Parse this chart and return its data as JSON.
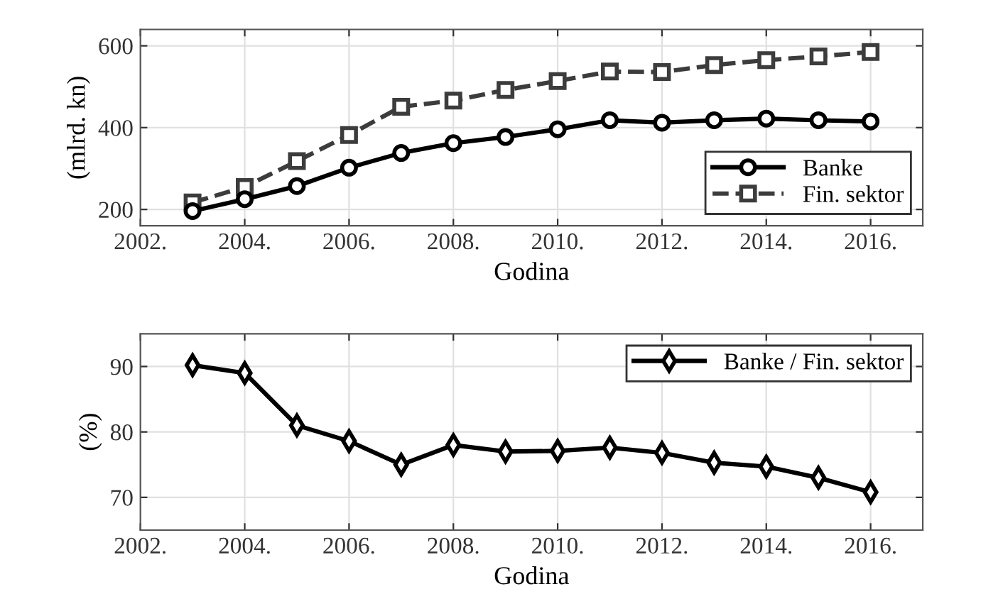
{
  "chart_data": [
    {
      "type": "line",
      "x": [
        2003,
        2004,
        2005,
        2006,
        2007,
        2008,
        2009,
        2010,
        2011,
        2012,
        2013,
        2014,
        2015,
        2016
      ],
      "series": [
        {
          "name": "Banke",
          "color": "#000000",
          "marker": "circle",
          "line_style": "solid",
          "values": [
            196,
            225,
            257,
            302,
            338,
            362,
            377,
            396,
            418,
            412,
            418,
            422,
            418,
            415
          ]
        },
        {
          "name": "Fin. sektor",
          "color": "#3c3c3c",
          "marker": "square",
          "line_style": "dashed",
          "values": [
            217,
            255,
            318,
            382,
            451,
            466,
            492,
            514,
            537,
            536,
            553,
            565,
            574,
            585
          ]
        }
      ],
      "xlabel": "Godina",
      "ylabel": "(mlrd. kn)",
      "xlim": [
        2002,
        2017
      ],
      "xticks": [
        {
          "value": 2002,
          "label": "2002."
        },
        {
          "value": 2004,
          "label": "2004."
        },
        {
          "value": 2006,
          "label": "2006."
        },
        {
          "value": 2008,
          "label": "2008."
        },
        {
          "value": 2010,
          "label": "2010."
        },
        {
          "value": 2012,
          "label": "2012."
        },
        {
          "value": 2014,
          "label": "2014."
        },
        {
          "value": 2016,
          "label": "2016."
        }
      ],
      "ylim": [
        160,
        640
      ],
      "yticks": [
        200,
        400,
        600
      ],
      "grid": true,
      "legend": "bottom right"
    },
    {
      "type": "line",
      "x": [
        2003,
        2004,
        2005,
        2006,
        2007,
        2008,
        2009,
        2010,
        2011,
        2012,
        2013,
        2014,
        2015,
        2016
      ],
      "series": [
        {
          "name": "Banke / Fin. sektor",
          "color": "#000000",
          "marker": "diamond",
          "line_style": "solid",
          "values": [
            90.2,
            89.0,
            81.0,
            78.6,
            75.0,
            78.0,
            77.0,
            77.1,
            77.6,
            76.8,
            75.3,
            74.7,
            73.0,
            70.8
          ]
        }
      ],
      "xlabel": "Godina",
      "ylabel": "(%)",
      "xlim": [
        2002,
        2017
      ],
      "xticks": [
        {
          "value": 2002,
          "label": "2002."
        },
        {
          "value": 2004,
          "label": "2004."
        },
        {
          "value": 2006,
          "label": "2006."
        },
        {
          "value": 2008,
          "label": "2008."
        },
        {
          "value": 2010,
          "label": "2010."
        },
        {
          "value": 2012,
          "label": "2012."
        },
        {
          "value": 2014,
          "label": "2014."
        },
        {
          "value": 2016,
          "label": "2016."
        }
      ],
      "ylim": [
        65,
        95
      ],
      "yticks": [
        70,
        80,
        90
      ],
      "grid": true,
      "legend": "top right"
    }
  ]
}
